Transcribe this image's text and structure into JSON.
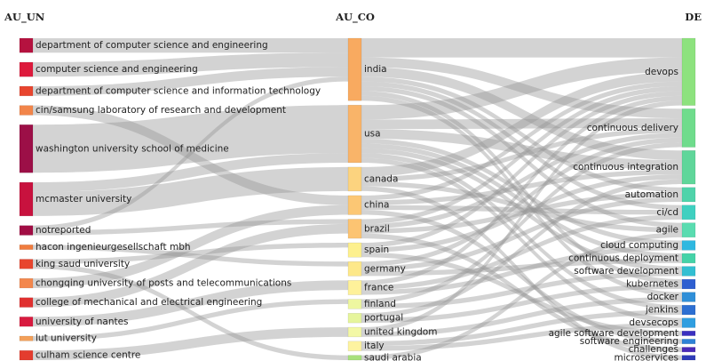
{
  "chart_data": {
    "type": "sankey",
    "columns": [
      {
        "title": "AU_UN",
        "nodes": [
          {
            "name": "department of computer science and engineering",
            "value": 3,
            "color": "#b5123f"
          },
          {
            "name": "computer science and engineering",
            "value": 3,
            "color": "#dd1a3c"
          },
          {
            "name": "department of computer science and information technology",
            "value": 2,
            "color": "#e8452e"
          },
          {
            "name": "cin/samsung laboratory of research and development",
            "value": 2,
            "color": "#f2854a"
          },
          {
            "name": "washington university school of medicine",
            "value": 10,
            "color": "#9c0f47"
          },
          {
            "name": "mcmaster university",
            "value": 7,
            "color": "#c8123e"
          },
          {
            "name": "notreported",
            "value": 2,
            "color": "#a10d44"
          },
          {
            "name": "hacon ingenieurgesellschaft mbh",
            "value": 1,
            "color": "#f07c3e"
          },
          {
            "name": "king saud university",
            "value": 2,
            "color": "#e8452e"
          },
          {
            "name": "chongqing university of posts and telecommunications",
            "value": 2,
            "color": "#f3874d"
          },
          {
            "name": "college of mechanical and electrical engineering",
            "value": 2,
            "color": "#e0302f"
          },
          {
            "name": "university of nantes",
            "value": 2,
            "color": "#d81b3f"
          },
          {
            "name": "lut university",
            "value": 1,
            "color": "#f3a05a"
          },
          {
            "name": "culham science centre",
            "value": 2,
            "color": "#e43c2e"
          }
        ]
      },
      {
        "title": "AU_CO",
        "nodes": [
          {
            "name": "india",
            "value": 13,
            "color": "#f8aa60"
          },
          {
            "name": "usa",
            "value": 12,
            "color": "#f9b469"
          },
          {
            "name": "canada",
            "value": 5,
            "color": "#fcd37f"
          },
          {
            "name": "china",
            "value": 4,
            "color": "#fcc774"
          },
          {
            "name": "brazil",
            "value": 4,
            "color": "#fcc472"
          },
          {
            "name": "spain",
            "value": 3,
            "color": "#fdf08e"
          },
          {
            "name": "germany",
            "value": 3,
            "color": "#fde88a"
          },
          {
            "name": "france",
            "value": 3,
            "color": "#fef19a"
          },
          {
            "name": "finland",
            "value": 2,
            "color": "#eef7a0"
          },
          {
            "name": "portugal",
            "value": 2,
            "color": "#e6f59c"
          },
          {
            "name": "united kingdom",
            "value": 2,
            "color": "#f3f8a6"
          },
          {
            "name": "italy",
            "value": 2,
            "color": "#fdf3a0"
          },
          {
            "name": "saudi arabia",
            "value": 1,
            "color": "#a8e07c"
          }
        ]
      },
      {
        "title": "DE",
        "nodes": [
          {
            "name": "devops",
            "value": 14,
            "color": "#8de27e"
          },
          {
            "name": "continuous delivery",
            "value": 8,
            "color": "#6fdc8c"
          },
          {
            "name": "continuous integration",
            "value": 7,
            "color": "#5fd69a"
          },
          {
            "name": "automation",
            "value": 3,
            "color": "#4fd3aa"
          },
          {
            "name": "ci/cd",
            "value": 3,
            "color": "#3fd0c0"
          },
          {
            "name": "agile",
            "value": 3,
            "color": "#5adcb0"
          },
          {
            "name": "cloud computing",
            "value": 2,
            "color": "#2fb8e0"
          },
          {
            "name": "continuous deployment",
            "value": 2,
            "color": "#45d3a8"
          },
          {
            "name": "software development",
            "value": 2,
            "color": "#32bfd2"
          },
          {
            "name": "kubernetes",
            "value": 2,
            "color": "#2e5fd0"
          },
          {
            "name": "docker",
            "value": 2,
            "color": "#2f8fd8"
          },
          {
            "name": "jenkins",
            "value": 2,
            "color": "#2c6fd2"
          },
          {
            "name": "devsecops",
            "value": 2,
            "color": "#2f9ee0"
          },
          {
            "name": "agile software development",
            "value": 1,
            "color": "#3a2fc0"
          },
          {
            "name": "software engineering",
            "value": 1,
            "color": "#2e82d6"
          },
          {
            "name": "challenges",
            "value": 1,
            "color": "#4a2ab8"
          },
          {
            "name": "microservices",
            "value": 1,
            "color": "#2e3cb8"
          }
        ]
      }
    ],
    "links": [
      {
        "source": "department of computer science and engineering",
        "target": "india",
        "value": 3
      },
      {
        "source": "computer science and engineering",
        "target": "india",
        "value": 3
      },
      {
        "source": "department of computer science and information technology",
        "target": "india",
        "value": 2
      },
      {
        "source": "cin/samsung laboratory of research and development",
        "target": "china",
        "value": 2
      },
      {
        "source": "washington university school of medicine",
        "target": "usa",
        "value": 10
      },
      {
        "source": "mcmaster university",
        "target": "canada",
        "value": 5
      },
      {
        "source": "mcmaster university",
        "target": "usa",
        "value": 2
      },
      {
        "source": "notreported",
        "target": "india",
        "value": 1
      },
      {
        "source": "notreported",
        "target": "brazil",
        "value": 1
      },
      {
        "source": "hacon ingenieurgesellschaft mbh",
        "target": "germany",
        "value": 1
      },
      {
        "source": "king saud university",
        "target": "saudi arabia",
        "value": 1
      },
      {
        "source": "king saud university",
        "target": "spain",
        "value": 1
      },
      {
        "source": "chongqing university of posts and telecommunications",
        "target": "china",
        "value": 2
      },
      {
        "source": "college of mechanical and electrical engineering",
        "target": "brazil",
        "value": 2
      },
      {
        "source": "university of nantes",
        "target": "france",
        "value": 2
      },
      {
        "source": "lut university",
        "target": "finland",
        "value": 1
      },
      {
        "source": "culham science centre",
        "target": "united kingdom",
        "value": 2
      },
      {
        "source": "india",
        "target": "devops",
        "value": 4
      },
      {
        "source": "india",
        "target": "continuous delivery",
        "value": 2
      },
      {
        "source": "india",
        "target": "continuous integration",
        "value": 2
      },
      {
        "source": "india",
        "target": "automation",
        "value": 1
      },
      {
        "source": "india",
        "target": "ci/cd",
        "value": 1
      },
      {
        "source": "india",
        "target": "agile",
        "value": 1
      },
      {
        "source": "india",
        "target": "kubernetes",
        "value": 1
      },
      {
        "source": "india",
        "target": "docker",
        "value": 1
      },
      {
        "source": "usa",
        "target": "devops",
        "value": 3
      },
      {
        "source": "usa",
        "target": "continuous delivery",
        "value": 2
      },
      {
        "source": "usa",
        "target": "continuous integration",
        "value": 2
      },
      {
        "source": "usa",
        "target": "cloud computing",
        "value": 1
      },
      {
        "source": "usa",
        "target": "continuous deployment",
        "value": 1
      },
      {
        "source": "usa",
        "target": "software development",
        "value": 1
      },
      {
        "source": "usa",
        "target": "jenkins",
        "value": 1
      },
      {
        "source": "usa",
        "target": "devsecops",
        "value": 1
      },
      {
        "source": "canada",
        "target": "devops",
        "value": 2
      },
      {
        "source": "canada",
        "target": "continuous delivery",
        "value": 1
      },
      {
        "source": "canada",
        "target": "agile",
        "value": 1
      },
      {
        "source": "canada",
        "target": "microservices",
        "value": 1
      },
      {
        "source": "china",
        "target": "continuous integration",
        "value": 1
      },
      {
        "source": "china",
        "target": "ci/cd",
        "value": 1
      },
      {
        "source": "china",
        "target": "devops",
        "value": 1
      },
      {
        "source": "china",
        "target": "software engineering",
        "value": 1
      },
      {
        "source": "brazil",
        "target": "devops",
        "value": 1
      },
      {
        "source": "brazil",
        "target": "continuous delivery",
        "value": 1
      },
      {
        "source": "brazil",
        "target": "automation",
        "value": 1
      },
      {
        "source": "brazil",
        "target": "challenges",
        "value": 1
      },
      {
        "source": "spain",
        "target": "devops",
        "value": 1
      },
      {
        "source": "spain",
        "target": "continuous integration",
        "value": 1
      },
      {
        "source": "spain",
        "target": "agile software development",
        "value": 1
      },
      {
        "source": "germany",
        "target": "continuous delivery",
        "value": 1
      },
      {
        "source": "germany",
        "target": "automation",
        "value": 1
      },
      {
        "source": "germany",
        "target": "continuous deployment",
        "value": 1
      },
      {
        "source": "france",
        "target": "devops",
        "value": 1
      },
      {
        "source": "france",
        "target": "cloud computing",
        "value": 1
      },
      {
        "source": "france",
        "target": "ci/cd",
        "value": 1
      },
      {
        "source": "finland",
        "target": "continuous delivery",
        "value": 1
      },
      {
        "source": "finland",
        "target": "software development",
        "value": 1
      },
      {
        "source": "portugal",
        "target": "continuous integration",
        "value": 1
      },
      {
        "source": "portugal",
        "target": "kubernetes",
        "value": 1
      },
      {
        "source": "united kingdom",
        "target": "devops",
        "value": 1
      },
      {
        "source": "united kingdom",
        "target": "docker",
        "value": 1
      },
      {
        "source": "italy",
        "target": "jenkins",
        "value": 1
      },
      {
        "source": "italy",
        "target": "devsecops",
        "value": 1
      },
      {
        "source": "saudi arabia",
        "target": "agile",
        "value": 1
      }
    ]
  }
}
